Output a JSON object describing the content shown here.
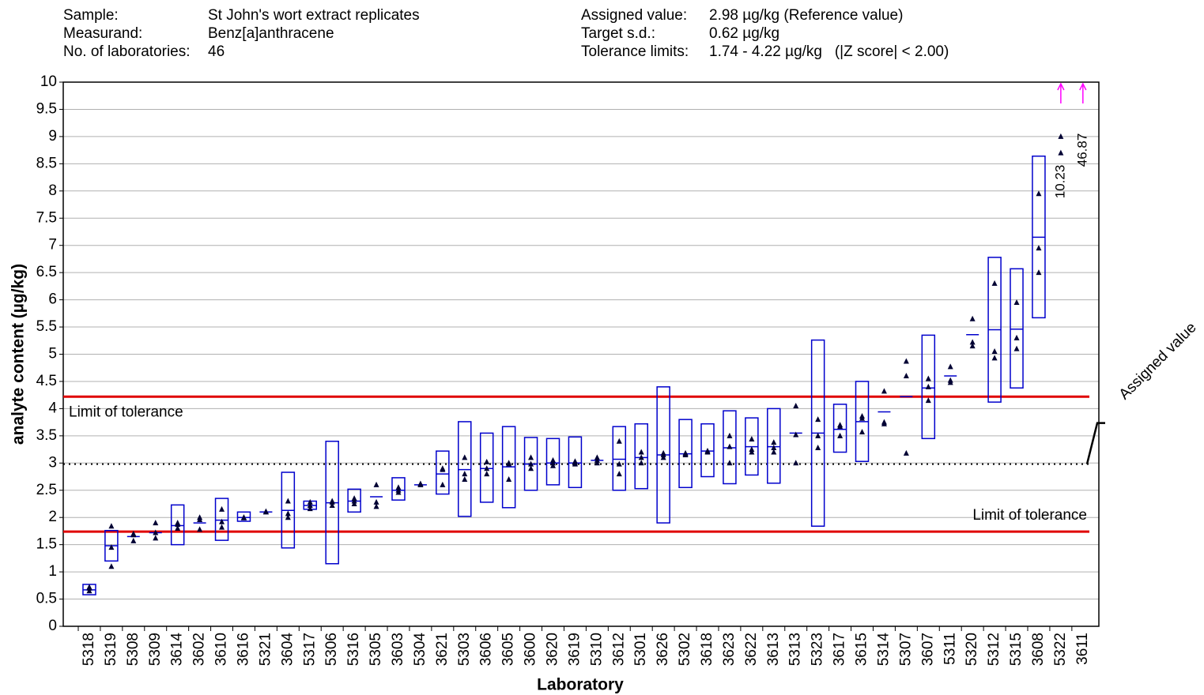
{
  "chart_data": {
    "type": "proficiency",
    "info_left": [
      {
        "label": "Sample:",
        "value": "St John's wort extract replicates"
      },
      {
        "label": "Measurand:",
        "value": "Benz[a]anthracene"
      },
      {
        "label": "No. of laboratories:",
        "value": "46"
      }
    ],
    "info_right": [
      {
        "label": "Assigned value:",
        "value": "2.98 µg/kg (Reference value)"
      },
      {
        "label": "Target s.d.:",
        "value": "0.62 µg/kg"
      },
      {
        "label": "Tolerance limits:",
        "value": "1.74 - 4.22 µg/kg   (|Z score| < 2.00)"
      }
    ],
    "y_label": "analyte content (µg/kg)",
    "x_label": "Laboratory",
    "ylim": [
      0,
      10
    ],
    "yticks": [
      0,
      0.5,
      1,
      1.5,
      2,
      2.5,
      3,
      3.5,
      4,
      4.5,
      5,
      5.5,
      6,
      6.5,
      7,
      7.5,
      8,
      8.5,
      9,
      9.5,
      10
    ],
    "grid": true,
    "box_color": "#0000cc",
    "point_color": "#000033",
    "overflow_color": "#ff00ff",
    "reference_lines": [
      {
        "value": 4.22,
        "label": "Limit of tolerance",
        "color": "#e00000",
        "style": "solid"
      },
      {
        "value": 1.74,
        "label": "Limit of tolerance",
        "color": "#e00000",
        "style": "solid"
      },
      {
        "value": 2.98,
        "label": "Assigned value",
        "color": "#000000",
        "style": "dotted"
      }
    ],
    "categories": [
      "5318",
      "5319",
      "5308",
      "5309",
      "3614",
      "3602",
      "3610",
      "3616",
      "5321",
      "3604",
      "5317",
      "5306",
      "5316",
      "5305",
      "3603",
      "5304",
      "3621",
      "5303",
      "3606",
      "3605",
      "3600",
      "3620",
      "3619",
      "5310",
      "3612",
      "5301",
      "3626",
      "5302",
      "3618",
      "3623",
      "3622",
      "3613",
      "5313",
      "5323",
      "3617",
      "3615",
      "5314",
      "5307",
      "3607",
      "5311",
      "5320",
      "5312",
      "5315",
      "3608",
      "5322",
      "3611"
    ],
    "means": [
      0.67,
      1.48,
      1.65,
      1.72,
      1.85,
      1.9,
      1.95,
      2.0,
      2.1,
      2.13,
      2.22,
      2.27,
      2.3,
      2.38,
      2.5,
      2.6,
      2.8,
      2.88,
      2.9,
      2.93,
      2.98,
      3.0,
      3.0,
      3.05,
      3.07,
      3.1,
      3.15,
      3.17,
      3.22,
      3.28,
      3.3,
      3.3,
      3.55,
      3.55,
      3.62,
      3.76,
      3.94,
      4.22,
      4.38,
      4.6,
      5.36,
      5.45,
      5.46,
      7.15,
      10.23,
      46.87
    ],
    "box_low": [
      0.58,
      1.2,
      null,
      null,
      1.5,
      null,
      1.58,
      1.93,
      null,
      1.44,
      2.15,
      1.15,
      2.1,
      null,
      2.32,
      null,
      2.43,
      2.02,
      2.28,
      2.18,
      2.5,
      2.6,
      2.55,
      null,
      2.5,
      2.53,
      1.9,
      2.55,
      2.75,
      2.62,
      2.78,
      2.63,
      null,
      1.84,
      3.2,
      3.03,
      null,
      null,
      3.45,
      null,
      null,
      4.12,
      4.38,
      5.67,
      null,
      null
    ],
    "box_high": [
      0.77,
      1.76,
      null,
      null,
      2.23,
      null,
      2.35,
      2.1,
      null,
      2.83,
      2.3,
      3.4,
      2.52,
      null,
      2.73,
      null,
      3.22,
      3.76,
      3.55,
      3.67,
      3.47,
      3.45,
      3.48,
      null,
      3.67,
      3.72,
      4.4,
      3.8,
      3.72,
      3.96,
      3.83,
      4.0,
      null,
      5.26,
      4.08,
      4.5,
      null,
      null,
      5.35,
      null,
      null,
      6.78,
      6.57,
      8.64,
      null,
      null
    ],
    "replicates": [
      [
        0.65,
        0.7,
        0.72
      ],
      [
        1.1,
        1.45,
        1.84
      ],
      [
        1.57,
        1.68,
        1.7
      ],
      [
        1.62,
        1.72,
        1.9
      ],
      [
        1.8,
        1.87,
        1.9
      ],
      [
        1.78,
        1.96,
        2.0
      ],
      [
        1.82,
        1.92,
        2.15
      ],
      [
        1.99,
        2.0,
        2.0
      ],
      [
        2.1,
        2.1,
        2.11
      ],
      [
        2.0,
        2.07,
        2.3
      ],
      [
        2.16,
        2.22,
        2.28
      ],
      [
        2.22,
        2.28,
        2.3
      ],
      [
        2.25,
        2.3,
        2.35
      ],
      [
        2.2,
        2.28,
        2.6
      ],
      [
        2.46,
        2.5,
        2.55
      ],
      [
        2.6,
        2.61,
        2.62
      ],
      [
        2.6,
        2.88,
        2.9
      ],
      [
        2.7,
        2.8,
        3.1
      ],
      [
        2.8,
        2.9,
        3.02
      ],
      [
        2.7,
        2.98,
        3.0
      ],
      [
        2.9,
        2.98,
        3.1
      ],
      [
        2.95,
        3.0,
        3.05
      ],
      [
        2.98,
        3.0,
        3.03
      ],
      [
        3.0,
        3.05,
        3.1
      ],
      [
        2.8,
        2.98,
        3.4
      ],
      [
        3.0,
        3.1,
        3.2
      ],
      [
        3.1,
        3.15,
        3.18
      ],
      [
        3.15,
        3.17,
        3.18
      ],
      [
        3.2,
        3.22,
        3.22
      ],
      [
        3.0,
        3.3,
        3.5
      ],
      [
        3.2,
        3.25,
        3.44
      ],
      [
        3.2,
        3.28,
        3.38
      ],
      [
        3.0,
        3.52,
        4.05
      ],
      [
        3.28,
        3.5,
        3.8
      ],
      [
        3.5,
        3.67,
        3.7
      ],
      [
        3.57,
        3.82,
        3.86
      ],
      [
        3.72,
        3.75,
        4.32
      ],
      [
        3.18,
        4.6,
        4.87
      ],
      [
        4.15,
        4.4,
        4.55
      ],
      [
        4.48,
        4.52,
        4.77
      ],
      [
        5.15,
        5.22,
        5.65
      ],
      [
        4.93,
        5.05,
        6.3
      ],
      [
        5.1,
        5.3,
        5.95
      ],
      [
        6.5,
        6.95,
        7.95
      ],
      [
        8.7,
        9.0
      ],
      []
    ]
  }
}
